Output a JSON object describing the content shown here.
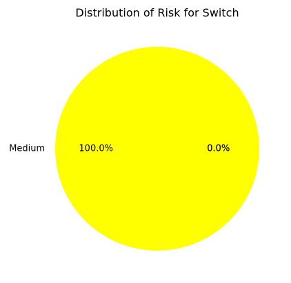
{
  "chart_data": {
    "type": "pie",
    "title": "Distribution of Risk for Switch",
    "slices": [
      {
        "label": "Medium",
        "value": 100.0,
        "pct_label": "100.0%",
        "color": "#ffff00"
      },
      {
        "label": "",
        "value": 0.0,
        "pct_label": "0.0%",
        "color": "#ffff00"
      },
      {
        "label": "",
        "value": 0.0,
        "pct_label": "0.0%",
        "color": "#ffff00"
      }
    ],
    "legend": "none"
  }
}
